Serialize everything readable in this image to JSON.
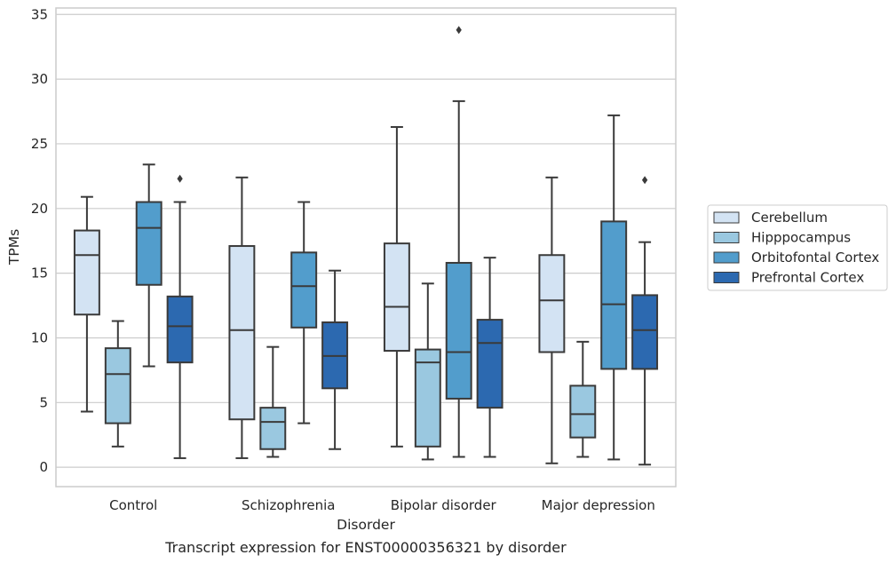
{
  "chart_data": {
    "type": "box",
    "caption": "Transcript expression for ENST00000356321 by disorder",
    "xlabel": "Disorder",
    "ylabel": "TPMs",
    "ylim": [
      -1.5,
      35.5
    ],
    "yticks": [
      0,
      5,
      10,
      15,
      20,
      25,
      30,
      35
    ],
    "grid": "horizontal",
    "legend_placement": "right",
    "categories": [
      "Control",
      "Schizophrenia",
      "Bipolar disorder",
      "Major depression"
    ],
    "series": [
      {
        "name": "Cerebellum",
        "color": "#d3e3f3",
        "boxes": [
          {
            "whislo": 4.3,
            "q1": 11.8,
            "med": 16.4,
            "q3": 18.3,
            "whishi": 20.9,
            "fliers": []
          },
          {
            "whislo": 0.7,
            "q1": 3.7,
            "med": 10.6,
            "q3": 17.1,
            "whishi": 22.4,
            "fliers": []
          },
          {
            "whislo": 1.6,
            "q1": 9.0,
            "med": 12.4,
            "q3": 17.3,
            "whishi": 26.3,
            "fliers": []
          },
          {
            "whislo": 0.3,
            "q1": 8.9,
            "med": 12.9,
            "q3": 16.4,
            "whishi": 22.4,
            "fliers": []
          }
        ]
      },
      {
        "name": "Hipppocampus",
        "color": "#9ac8e0",
        "boxes": [
          {
            "whislo": 1.6,
            "q1": 3.4,
            "med": 7.2,
            "q3": 9.2,
            "whishi": 11.3,
            "fliers": []
          },
          {
            "whislo": 0.8,
            "q1": 1.4,
            "med": 3.5,
            "q3": 4.6,
            "whishi": 9.3,
            "fliers": []
          },
          {
            "whislo": 0.6,
            "q1": 1.6,
            "med": 8.1,
            "q3": 9.1,
            "whishi": 14.2,
            "fliers": []
          },
          {
            "whislo": 0.8,
            "q1": 2.3,
            "med": 4.1,
            "q3": 6.3,
            "whishi": 9.7,
            "fliers": []
          }
        ]
      },
      {
        "name": "Orbitofontal Cortex",
        "color": "#529dcc",
        "boxes": [
          {
            "whislo": 7.8,
            "q1": 14.1,
            "med": 18.5,
            "q3": 20.5,
            "whishi": 23.4,
            "fliers": []
          },
          {
            "whislo": 3.4,
            "q1": 10.8,
            "med": 14.0,
            "q3": 16.6,
            "whishi": 20.5,
            "fliers": []
          },
          {
            "whislo": 0.8,
            "q1": 5.3,
            "med": 8.9,
            "q3": 15.8,
            "whishi": 28.3,
            "fliers": [
              33.8
            ]
          },
          {
            "whislo": 0.6,
            "q1": 7.6,
            "med": 12.6,
            "q3": 19.0,
            "whishi": 27.2,
            "fliers": []
          }
        ]
      },
      {
        "name": "Prefrontal Cortex",
        "color": "#2c69b0",
        "boxes": [
          {
            "whislo": 0.7,
            "q1": 8.1,
            "med": 10.9,
            "q3": 13.2,
            "whishi": 20.5,
            "fliers": [
              22.3
            ]
          },
          {
            "whislo": 1.4,
            "q1": 6.1,
            "med": 8.6,
            "q3": 11.2,
            "whishi": 15.2,
            "fliers": []
          },
          {
            "whislo": 0.8,
            "q1": 4.6,
            "med": 9.6,
            "q3": 11.4,
            "whishi": 16.2,
            "fliers": []
          },
          {
            "whislo": 0.2,
            "q1": 7.6,
            "med": 10.6,
            "q3": 13.3,
            "whishi": 17.4,
            "fliers": [
              22.2
            ]
          }
        ]
      }
    ]
  }
}
